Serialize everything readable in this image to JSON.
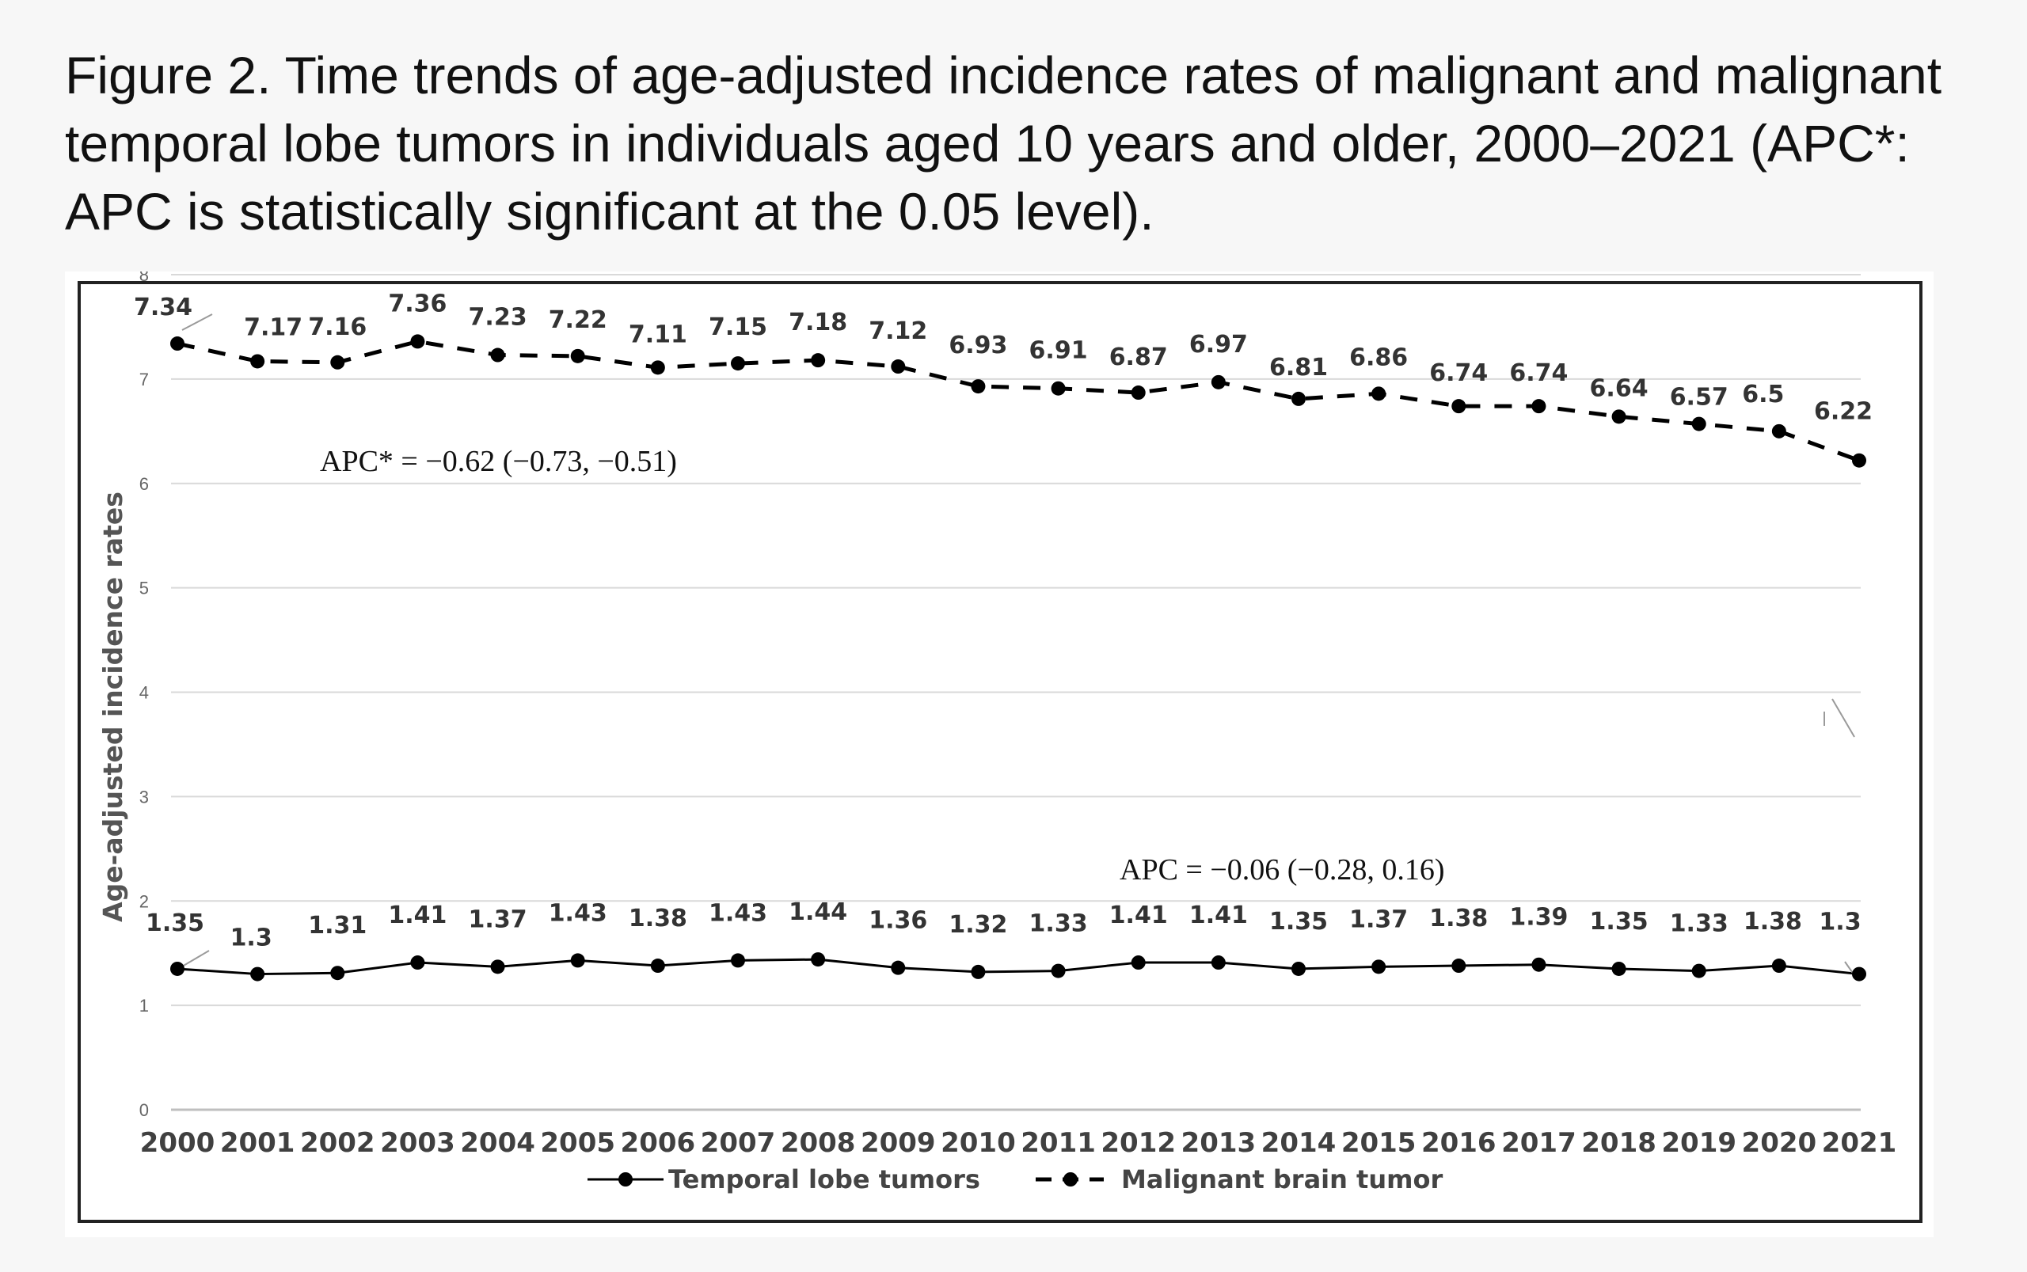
{
  "caption": {
    "line1": "Figure 2. Time trends of age-adjusted incidence rates of malignant and malignant",
    "line2": "temporal lobe tumors in individuals aged 10 years and older, 2000–2021 (APC*:",
    "line3": "APC is statistically significant at the 0.05 level)."
  },
  "chart_data": {
    "type": "line",
    "title": "",
    "xlabel": "",
    "ylabel": "Age-adjusted incidence rates",
    "ylim": [
      0,
      8
    ],
    "yticks": [
      "0",
      "1",
      "2",
      "3",
      "4",
      "5",
      "6",
      "7",
      "8"
    ],
    "grid": true,
    "legend_position": "bottom",
    "categories": [
      "2000",
      "2001",
      "2002",
      "2003",
      "2004",
      "2005",
      "2006",
      "2007",
      "2008",
      "2009",
      "2010",
      "2011",
      "2012",
      "2013",
      "2014",
      "2015",
      "2016",
      "2017",
      "2018",
      "2019",
      "2020",
      "2021"
    ],
    "series": [
      {
        "name": "Temporal lobe tumors",
        "style": "solid",
        "values": [
          1.35,
          1.3,
          1.31,
          1.41,
          1.37,
          1.43,
          1.38,
          1.43,
          1.44,
          1.36,
          1.32,
          1.33,
          1.41,
          1.41,
          1.35,
          1.37,
          1.38,
          1.39,
          1.35,
          1.33,
          1.38,
          1.3
        ],
        "labels": [
          "1.35",
          "1.3",
          "1.31",
          "1.41",
          "1.37",
          "1.43",
          "1.38",
          "1.43",
          "1.44",
          "1.36",
          "1.32",
          "1.33",
          "1.41",
          "1.41",
          "1.35",
          "1.37",
          "1.38",
          "1.39",
          "1.35",
          "1.33",
          "1.38",
          "1.3"
        ]
      },
      {
        "name": "Malignant brain tumor",
        "style": "dashed",
        "values": [
          7.34,
          7.17,
          7.16,
          7.36,
          7.23,
          7.22,
          7.11,
          7.15,
          7.18,
          7.12,
          6.93,
          6.91,
          6.87,
          6.97,
          6.81,
          6.86,
          6.74,
          6.74,
          6.64,
          6.57,
          6.5,
          6.22
        ],
        "labels": [
          "7.34",
          "7.17",
          "7.16",
          "7.36",
          "7.23",
          "7.22",
          "7.11",
          "7.15",
          "7.18",
          "7.12",
          "6.93",
          "6.91",
          "6.87",
          "6.97",
          "6.81",
          "6.86",
          "6.74",
          "6.74",
          "6.64",
          "6.57",
          "6.5",
          "6.22"
        ]
      }
    ],
    "annotations": [
      {
        "series": "Malignant brain tumor",
        "text": "APC* = −0.62 (−0.73, −0.51)"
      },
      {
        "series": "Temporal lobe tumors",
        "text": "APC = −0.06 (−0.28, 0.16)"
      }
    ]
  }
}
